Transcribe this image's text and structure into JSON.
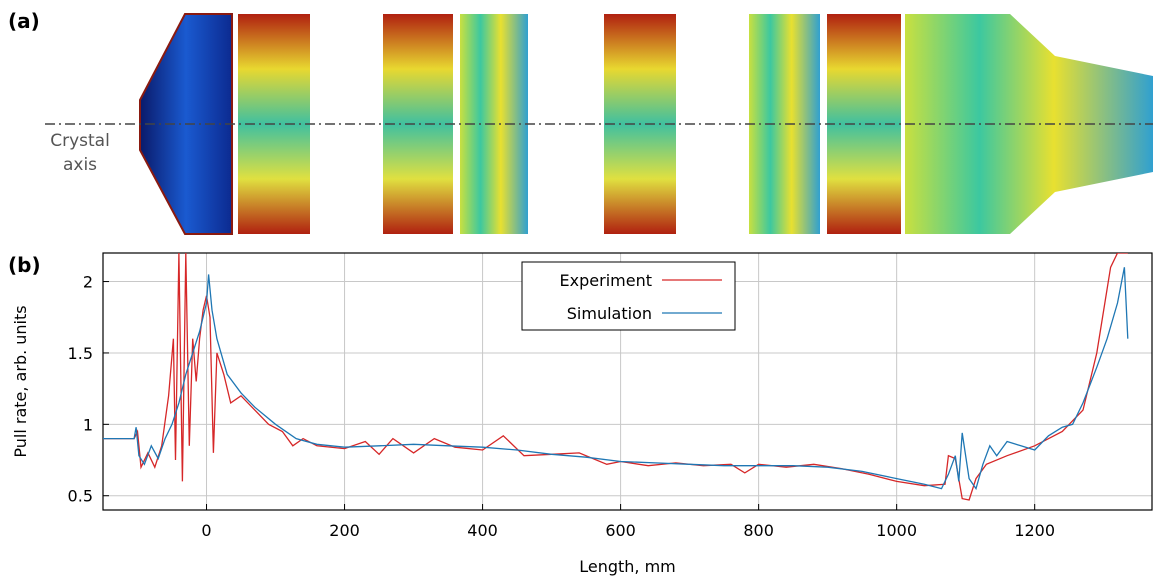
{
  "panels": {
    "a": {
      "label": "(a)",
      "axis_label_lines": [
        "Crystal",
        "axis"
      ]
    },
    "b": {
      "label": "(b)"
    }
  },
  "chart_data": {
    "type": "line",
    "x_label": "Length, mm",
    "y_label": "Pull rate, arb. units",
    "xlim": [
      -150,
      1370
    ],
    "ylim": [
      0.4,
      2.2
    ],
    "xticks": [
      0,
      200,
      400,
      600,
      800,
      1000,
      1200
    ],
    "yticks": [
      0.5,
      1,
      1.5,
      2
    ],
    "grid": true,
    "legend": "top",
    "series": [
      {
        "name": "Experiment",
        "color": "#d62728",
        "x": [
          -150,
          -105,
          -100,
          -95,
          -85,
          -75,
          -65,
          -55,
          -48,
          -45,
          -40,
          -35,
          -30,
          -25,
          -20,
          -15,
          -10,
          -5,
          0,
          5,
          10,
          15,
          25,
          35,
          50,
          70,
          90,
          110,
          125,
          140,
          160,
          200,
          230,
          250,
          270,
          300,
          330,
          360,
          400,
          430,
          460,
          500,
          540,
          580,
          600,
          640,
          680,
          720,
          760,
          780,
          800,
          840,
          880,
          920,
          960,
          1000,
          1040,
          1070,
          1075,
          1085,
          1095,
          1105,
          1115,
          1130,
          1160,
          1200,
          1240,
          1270,
          1290,
          1310,
          1320,
          1335
        ],
        "values": [
          0.9,
          0.9,
          0.95,
          0.7,
          0.8,
          0.7,
          0.85,
          1.2,
          1.6,
          0.75,
          2.2,
          0.6,
          2.2,
          0.85,
          1.6,
          1.3,
          1.6,
          1.8,
          1.9,
          1.75,
          0.8,
          1.5,
          1.35,
          1.15,
          1.2,
          1.1,
          1.0,
          0.95,
          0.85,
          0.9,
          0.85,
          0.83,
          0.88,
          0.79,
          0.9,
          0.8,
          0.9,
          0.84,
          0.82,
          0.92,
          0.78,
          0.79,
          0.8,
          0.72,
          0.74,
          0.71,
          0.73,
          0.71,
          0.72,
          0.66,
          0.72,
          0.7,
          0.72,
          0.69,
          0.65,
          0.6,
          0.57,
          0.58,
          0.78,
          0.76,
          0.48,
          0.47,
          0.62,
          0.72,
          0.78,
          0.85,
          0.95,
          1.1,
          1.5,
          2.1,
          2.2,
          2.2
        ]
      },
      {
        "name": "Simulation",
        "color": "#1f77b4",
        "x": [
          -150,
          -105,
          -102,
          -98,
          -90,
          -80,
          -70,
          -60,
          -50,
          -40,
          -30,
          -20,
          -10,
          0,
          3,
          8,
          15,
          30,
          50,
          70,
          100,
          130,
          160,
          200,
          250,
          300,
          350,
          400,
          450,
          500,
          550,
          600,
          650,
          700,
          750,
          800,
          850,
          900,
          950,
          1000,
          1040,
          1065,
          1075,
          1085,
          1090,
          1095,
          1105,
          1115,
          1125,
          1135,
          1145,
          1160,
          1180,
          1200,
          1220,
          1240,
          1255,
          1270,
          1290,
          1305,
          1320,
          1330,
          1335
        ],
        "values": [
          0.9,
          0.9,
          0.98,
          0.78,
          0.72,
          0.85,
          0.76,
          0.9,
          1.0,
          1.15,
          1.35,
          1.5,
          1.65,
          1.85,
          2.05,
          1.8,
          1.6,
          1.35,
          1.22,
          1.12,
          1.0,
          0.9,
          0.86,
          0.84,
          0.85,
          0.86,
          0.85,
          0.84,
          0.82,
          0.79,
          0.77,
          0.74,
          0.73,
          0.72,
          0.71,
          0.71,
          0.71,
          0.7,
          0.67,
          0.62,
          0.58,
          0.55,
          0.65,
          0.78,
          0.6,
          0.94,
          0.62,
          0.55,
          0.72,
          0.85,
          0.78,
          0.88,
          0.85,
          0.82,
          0.92,
          0.98,
          1.0,
          1.15,
          1.4,
          1.6,
          1.85,
          2.1,
          1.6
        ]
      }
    ]
  }
}
